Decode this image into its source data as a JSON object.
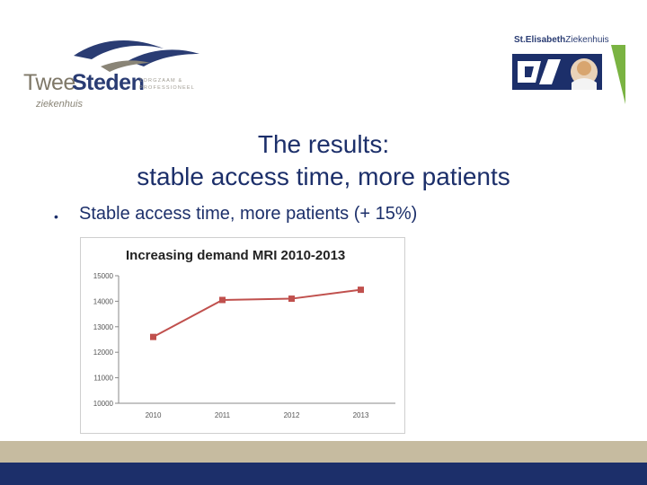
{
  "logos": {
    "left": {
      "word1": "Twee",
      "word2": "Steden",
      "sub": "ziekenhuis",
      "tagline": "ZORGZAAM & PROFESSIONEEL"
    },
    "right": {
      "name_bold": "St.Elisabeth",
      "name_rest": "Ziekenhuis"
    }
  },
  "slide": {
    "title_line1": "The results:",
    "title_line2": "stable access time, more patients",
    "bullet": "Stable access time, more patients (+ 15%)"
  },
  "colors": {
    "navy": "#1c2f6a",
    "tan": "#c6bba0",
    "green": "#7ab342",
    "series": "#c0504d"
  },
  "chart_data": {
    "type": "line",
    "title": "Increasing demand MRI 2010-2013",
    "categories": [
      "2010",
      "2011",
      "2012",
      "2013"
    ],
    "series": [
      {
        "values": [
          12600,
          14050,
          14100,
          14450
        ]
      }
    ],
    "ylim": [
      10000,
      15000
    ],
    "yticks": [
      10000,
      11000,
      12000,
      13000,
      14000,
      15000
    ],
    "grid": false,
    "legend": "none"
  }
}
